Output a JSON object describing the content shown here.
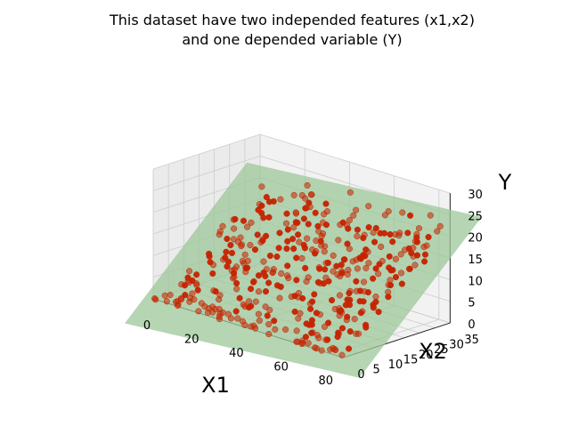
{
  "chart_data": {
    "type": "scatter3d",
    "title_lines": [
      "This dataset have two independed features (x1,x2)",
      "and one depended variable (Y)"
    ],
    "xlabel": "X1",
    "ylabel": "X2",
    "zlabel": "Y",
    "xlim": [
      0,
      85
    ],
    "ylim": [
      0,
      35
    ],
    "zlim": [
      0,
      30
    ],
    "xticks": [
      "0",
      "20",
      "40",
      "60",
      "80"
    ],
    "yticks": [
      "0",
      "5",
      "10",
      "15",
      "20",
      "25",
      "30",
      "35"
    ],
    "zticks": [
      "0",
      "5",
      "10",
      "15",
      "20",
      "25",
      "30"
    ],
    "plane": {
      "equation": "Y = 0.04*X1 + 0.7*X2 - 5",
      "color": "#9cc79a"
    },
    "points_color": "#c62200",
    "points_count": 400,
    "points_range": {
      "x1": [
        0,
        85
      ],
      "x2": [
        0,
        35
      ],
      "y": [
        0,
        30
      ]
    }
  },
  "colors": {
    "background": "#ffffff",
    "pane": "#f2f2f2",
    "grid": "#cccccc"
  }
}
